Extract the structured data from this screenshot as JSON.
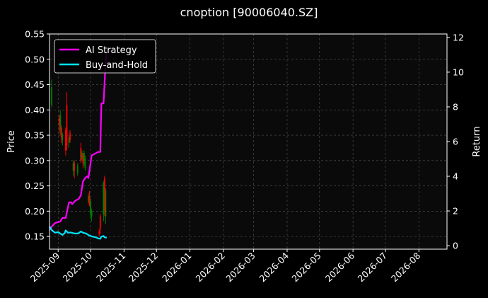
{
  "chart_data": {
    "type": "line",
    "title": "cnoption [90006040.SZ]",
    "ylabel_left": "Price",
    "ylabel_right": "Return",
    "ylim_left": [
      0.125,
      0.55
    ],
    "ylim_right": [
      -0.2,
      12.2
    ],
    "xlim": [
      "2025-08-24",
      "2026-08-27"
    ],
    "yticks_left": [
      "0.15",
      "0.20",
      "0.25",
      "0.30",
      "0.35",
      "0.40",
      "0.45",
      "0.50",
      "0.55"
    ],
    "yticks_right": [
      "0",
      "2",
      "4",
      "6",
      "8",
      "10",
      "12"
    ],
    "xticks": [
      "2025-09",
      "2025-10",
      "2025-11",
      "2025-12",
      "2026-01",
      "2026-02",
      "2026-03",
      "2026-04",
      "2026-05",
      "2026-06",
      "2026-07",
      "2026-08"
    ],
    "grid": true,
    "legend_position": "top-left",
    "colors": {
      "up": "#ff0000",
      "down": "#008000",
      "strategy": "#ff00ff",
      "buyhold": "#00e5ff",
      "background": "#000000"
    },
    "candles": [
      {
        "date": "2025-08-26",
        "open": 0.445,
        "close": 0.41,
        "high": 0.46,
        "low": 0.405
      },
      {
        "date": "2025-09-02",
        "open": 0.37,
        "close": 0.385,
        "high": 0.39,
        "low": 0.355
      },
      {
        "date": "2025-09-03",
        "open": 0.39,
        "close": 0.36,
        "high": 0.4,
        "low": 0.35
      },
      {
        "date": "2025-09-04",
        "open": 0.345,
        "close": 0.365,
        "high": 0.37,
        "low": 0.335
      },
      {
        "date": "2025-09-05",
        "open": 0.35,
        "close": 0.34,
        "high": 0.355,
        "low": 0.33
      },
      {
        "date": "2025-09-08",
        "open": 0.32,
        "close": 0.36,
        "high": 0.365,
        "low": 0.31
      },
      {
        "date": "2025-09-09",
        "open": 0.33,
        "close": 0.41,
        "high": 0.435,
        "low": 0.32
      },
      {
        "date": "2025-09-11",
        "open": 0.345,
        "close": 0.335,
        "high": 0.35,
        "low": 0.325
      },
      {
        "date": "2025-09-12",
        "open": 0.34,
        "close": 0.355,
        "high": 0.36,
        "low": 0.335
      },
      {
        "date": "2025-09-15",
        "open": 0.295,
        "close": 0.28,
        "high": 0.3,
        "low": 0.27
      },
      {
        "date": "2025-09-16",
        "open": 0.28,
        "close": 0.295,
        "high": 0.3,
        "low": 0.265
      },
      {
        "date": "2025-09-19",
        "open": 0.29,
        "close": 0.275,
        "high": 0.295,
        "low": 0.27
      },
      {
        "date": "2025-09-22",
        "open": 0.3,
        "close": 0.325,
        "high": 0.335,
        "low": 0.295
      },
      {
        "date": "2025-09-23",
        "open": 0.315,
        "close": 0.305,
        "high": 0.32,
        "low": 0.3
      },
      {
        "date": "2025-09-24",
        "open": 0.295,
        "close": 0.31,
        "high": 0.315,
        "low": 0.285
      },
      {
        "date": "2025-09-25",
        "open": 0.315,
        "close": 0.3,
        "high": 0.32,
        "low": 0.29
      },
      {
        "date": "2025-09-26",
        "open": 0.305,
        "close": 0.285,
        "high": 0.31,
        "low": 0.28
      },
      {
        "date": "2025-09-29",
        "open": 0.23,
        "close": 0.22,
        "high": 0.235,
        "low": 0.215
      },
      {
        "date": "2025-09-30",
        "open": 0.215,
        "close": 0.23,
        "high": 0.24,
        "low": 0.21
      },
      {
        "date": "2025-10-01",
        "open": 0.22,
        "close": 0.195,
        "high": 0.225,
        "low": 0.185
      },
      {
        "date": "2025-10-02",
        "open": 0.2,
        "close": 0.19,
        "high": 0.205,
        "low": 0.18
      },
      {
        "date": "2025-10-09",
        "open": 0.155,
        "close": 0.16,
        "high": 0.165,
        "low": 0.15
      },
      {
        "date": "2025-10-10",
        "open": 0.165,
        "close": 0.19,
        "high": 0.195,
        "low": 0.155
      },
      {
        "date": "2025-10-13",
        "open": 0.255,
        "close": 0.195,
        "high": 0.26,
        "low": 0.18
      },
      {
        "date": "2025-10-14",
        "open": 0.2,
        "close": 0.265,
        "high": 0.27,
        "low": 0.19
      },
      {
        "date": "2025-10-15",
        "open": 0.24,
        "close": 0.19,
        "high": 0.245,
        "low": 0.175
      }
    ],
    "series": [
      {
        "name": "AI Strategy",
        "points": [
          [
            "2025-08-24",
            0.9
          ],
          [
            "2025-08-26",
            1.1
          ],
          [
            "2025-08-29",
            1.3
          ],
          [
            "2025-09-03",
            1.4
          ],
          [
            "2025-09-05",
            1.6
          ],
          [
            "2025-09-08",
            1.6
          ],
          [
            "2025-09-11",
            2.5
          ],
          [
            "2025-09-13",
            2.5
          ],
          [
            "2025-09-14",
            2.4
          ],
          [
            "2025-09-17",
            2.6
          ],
          [
            "2025-09-20",
            2.7
          ],
          [
            "2025-09-22",
            2.9
          ],
          [
            "2025-09-24",
            3.7
          ],
          [
            "2025-09-26",
            3.9
          ],
          [
            "2025-09-28",
            4.0
          ],
          [
            "2025-09-29",
            3.9
          ],
          [
            "2025-10-02",
            5.2
          ],
          [
            "2025-10-05",
            5.3
          ],
          [
            "2025-10-08",
            5.4
          ],
          [
            "2025-10-10",
            5.4
          ],
          [
            "2025-10-11",
            8.2
          ],
          [
            "2025-10-13",
            8.2
          ],
          [
            "2025-10-15",
            10.6
          ],
          [
            "2025-10-16",
            11.2
          ]
        ]
      },
      {
        "name": "Buy-and-Hold",
        "points": [
          [
            "2025-08-24",
            1.1
          ],
          [
            "2025-08-26",
            0.9
          ],
          [
            "2025-08-29",
            0.75
          ],
          [
            "2025-09-01",
            0.78
          ],
          [
            "2025-09-03",
            0.7
          ],
          [
            "2025-09-05",
            0.62
          ],
          [
            "2025-09-07",
            0.72
          ],
          [
            "2025-09-08",
            0.88
          ],
          [
            "2025-09-10",
            0.75
          ],
          [
            "2025-09-13",
            0.76
          ],
          [
            "2025-09-15",
            0.72
          ],
          [
            "2025-09-17",
            0.7
          ],
          [
            "2025-09-19",
            0.7
          ],
          [
            "2025-09-20",
            0.72
          ],
          [
            "2025-09-22",
            0.82
          ],
          [
            "2025-09-24",
            0.75
          ],
          [
            "2025-09-27",
            0.7
          ],
          [
            "2025-09-30",
            0.58
          ],
          [
            "2025-10-03",
            0.52
          ],
          [
            "2025-10-06",
            0.48
          ],
          [
            "2025-10-08",
            0.42
          ],
          [
            "2025-10-10",
            0.4
          ],
          [
            "2025-10-11",
            0.52
          ],
          [
            "2025-10-13",
            0.56
          ],
          [
            "2025-10-14",
            0.48
          ],
          [
            "2025-10-16",
            0.46
          ]
        ]
      }
    ]
  }
}
